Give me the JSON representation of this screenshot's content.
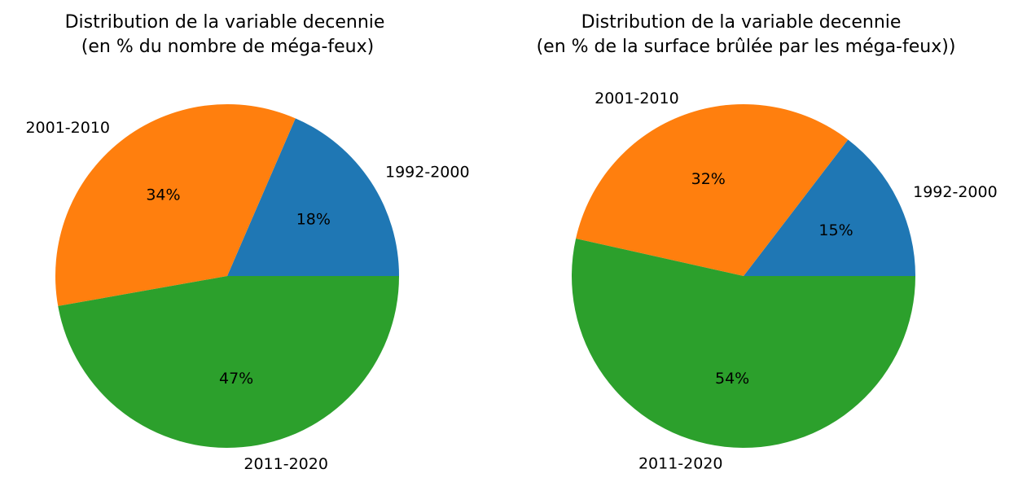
{
  "chart_data": [
    {
      "type": "pie",
      "title_lines": [
        "Distribution de la variable decennie",
        " (en % du nombre de méga-feux)"
      ],
      "categories": [
        "1992-2000",
        "2001-2010",
        "2011-2020"
      ],
      "values": [
        18.5,
        34.3,
        47.2
      ],
      "percent_labels": [
        "18%",
        "34%",
        "47%"
      ],
      "colors": [
        "#1f77b4",
        "#ff7f0e",
        "#2ca02c"
      ]
    },
    {
      "type": "pie",
      "title_lines": [
        "Distribution de la variable decennie",
        "(en % de la surface brûlée par les méga-feux))"
      ],
      "categories": [
        "1992-2000",
        "2001-2010",
        "2011-2020"
      ],
      "values": [
        14.6,
        31.9,
        53.5
      ],
      "percent_labels": [
        "15%",
        "32%",
        "54%"
      ],
      "colors": [
        "#1f77b4",
        "#ff7f0e",
        "#2ca02c"
      ]
    }
  ]
}
